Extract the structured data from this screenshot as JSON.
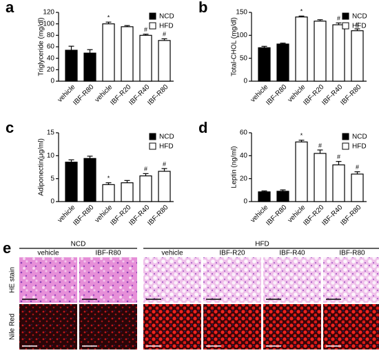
{
  "chart_data": [
    {
      "type": "bar",
      "panel_label": "a",
      "ylabel": "Triglyceride (mg/dl)",
      "categories": [
        "vehicle",
        "IBF-R80",
        "vehicle",
        "IBF-R20",
        "IBF-R40",
        "IBF-R80"
      ],
      "series": [
        {
          "name": "NCD",
          "color": "#000000",
          "values": [
            54,
            49,
            null,
            null,
            null,
            null
          ],
          "errors": [
            7,
            6,
            null,
            null,
            null,
            null
          ]
        },
        {
          "name": "HFD",
          "color": "#ffffff",
          "values": [
            null,
            null,
            100,
            95,
            80,
            71
          ],
          "errors": [
            null,
            null,
            3,
            2,
            2,
            3
          ]
        }
      ],
      "annotations": [
        null,
        null,
        "*",
        null,
        "#",
        "#"
      ],
      "ylim": [
        0,
        120
      ],
      "yticks": [
        0,
        20,
        40,
        60,
        80,
        100,
        120
      ]
    },
    {
      "type": "bar",
      "panel_label": "b",
      "ylabel": "Total-CHOL (mg/dl)",
      "categories": [
        "vehicle",
        "IBF-R80",
        "vehicle",
        "IBF-R20",
        "IBF-R40",
        "IBF-R80"
      ],
      "series": [
        {
          "name": "NCD",
          "color": "#000000",
          "values": [
            73,
            81,
            null,
            null,
            null,
            null
          ],
          "errors": [
            3,
            2,
            null,
            null,
            null,
            null
          ]
        },
        {
          "name": "HFD",
          "color": "#ffffff",
          "values": [
            null,
            null,
            140,
            131,
            123,
            110
          ],
          "errors": [
            null,
            null,
            2,
            3,
            4,
            4
          ]
        }
      ],
      "annotations": [
        null,
        null,
        "*",
        null,
        "#",
        "#"
      ],
      "ylim": [
        0,
        150
      ],
      "yticks": [
        0,
        50,
        100,
        150
      ]
    },
    {
      "type": "bar",
      "panel_label": "c",
      "ylabel": "Adiponectin(μg/ml)",
      "categories": [
        "vehicle",
        "IBF-R80",
        "vehicle",
        "IBF-R20",
        "IBF-R40",
        "IBF-R80"
      ],
      "series": [
        {
          "name": "NCD",
          "color": "#000000",
          "values": [
            8.6,
            9.4,
            null,
            null,
            null,
            null
          ],
          "errors": [
            0.5,
            0.5,
            null,
            null,
            null,
            null
          ]
        },
        {
          "name": "HFD",
          "color": "#ffffff",
          "values": [
            null,
            null,
            3.7,
            4.1,
            5.6,
            6.6
          ],
          "errors": [
            null,
            null,
            0.4,
            0.5,
            0.5,
            0.6
          ]
        }
      ],
      "annotations": [
        null,
        null,
        "*",
        null,
        "#",
        "#"
      ],
      "ylim": [
        0,
        15
      ],
      "yticks": [
        0,
        5,
        10,
        15
      ]
    },
    {
      "type": "bar",
      "panel_label": "d",
      "ylabel": "Leptin (ng/ml)",
      "categories": [
        "vehicle",
        "IBF-R80",
        "vehicle",
        "IBF-R20",
        "IBF-R40",
        "IBF-R80"
      ],
      "series": [
        {
          "name": "NCD",
          "color": "#000000",
          "values": [
            8.5,
            9,
            null,
            null,
            null,
            null
          ],
          "errors": [
            0.8,
            1.2,
            null,
            null,
            null,
            null
          ]
        },
        {
          "name": "HFD",
          "color": "#ffffff",
          "values": [
            null,
            null,
            52,
            42,
            32,
            24
          ],
          "errors": [
            null,
            null,
            1.5,
            3,
            3,
            2
          ]
        }
      ],
      "annotations": [
        null,
        null,
        "*",
        "#",
        "#",
        "#"
      ],
      "ylim": [
        0,
        60
      ],
      "yticks": [
        0,
        20,
        40,
        60
      ]
    }
  ],
  "panel_e": {
    "label": "e",
    "groups": [
      {
        "name": "NCD",
        "columns": [
          "vehicle",
          "IBF-R80"
        ]
      },
      {
        "name": "HFD",
        "columns": [
          "vehicle",
          "IBF-R20",
          "IBF-R40",
          "IBF-R80"
        ]
      }
    ],
    "rows": [
      "HE stain",
      "Nile Red"
    ]
  }
}
